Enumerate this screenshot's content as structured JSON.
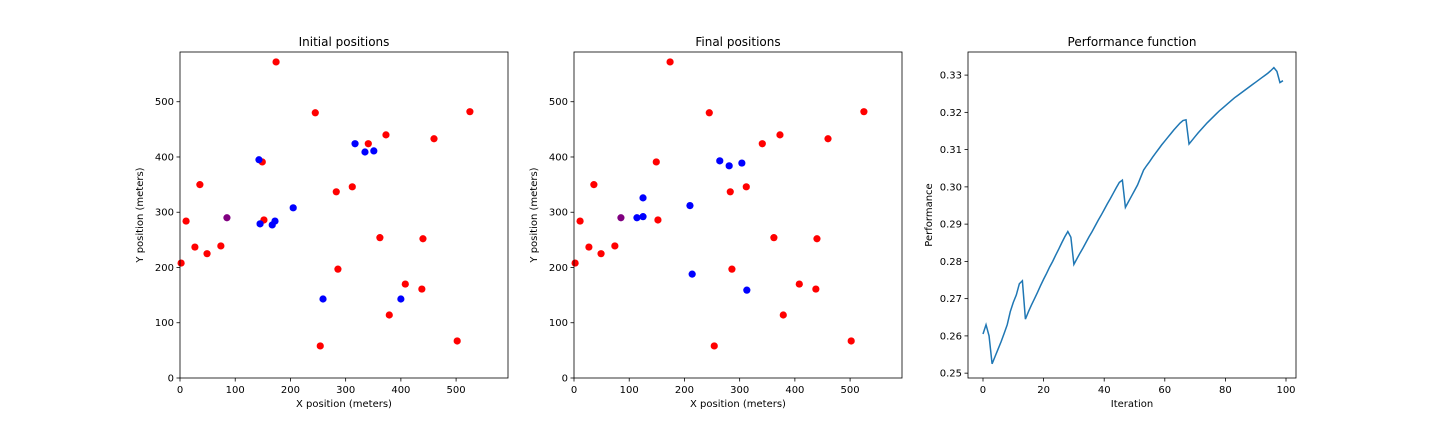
{
  "chart_data": [
    {
      "type": "scatter",
      "title": "Initial positions",
      "x_label": "X position (meters)",
      "y_label": "Y position (meters)",
      "xlim": [
        0,
        594
      ],
      "ylim": [
        0,
        590
      ],
      "xticks": [
        0,
        100,
        200,
        300,
        400,
        500
      ],
      "yticks": [
        0,
        100,
        200,
        300,
        400,
        500
      ],
      "series": [
        {
          "color": "red",
          "x": [
            174,
            245,
            525,
            373,
            341,
            460,
            149,
            36,
            312,
            283,
            11,
            152,
            2,
            27,
            49,
            74,
            362,
            440,
            286,
            408,
            438,
            379,
            254,
            502
          ],
          "y": [
            572,
            480,
            482,
            440,
            424,
            433,
            391,
            350,
            346,
            337,
            284,
            286,
            208,
            237,
            225,
            239,
            254,
            252,
            197,
            170,
            161,
            114,
            58,
            67
          ]
        },
        {
          "color": "blue",
          "x": [
            317,
            335,
            351,
            143,
            205,
            172,
            167,
            145,
            259,
            400
          ],
          "y": [
            424,
            409,
            411,
            395,
            308,
            284,
            277,
            279,
            143,
            143
          ]
        },
        {
          "color": "purple",
          "x": [
            85
          ],
          "y": [
            290
          ]
        }
      ]
    },
    {
      "type": "scatter",
      "title": "Final positions",
      "x_label": "X position (meters)",
      "y_label": "Y position (meters)",
      "xlim": [
        0,
        594
      ],
      "ylim": [
        0,
        590
      ],
      "xticks": [
        0,
        100,
        200,
        300,
        400,
        500
      ],
      "yticks": [
        0,
        100,
        200,
        300,
        400,
        500
      ],
      "series": [
        {
          "color": "red",
          "x": [
            174,
            245,
            525,
            373,
            341,
            460,
            149,
            36,
            312,
            283,
            11,
            152,
            2,
            27,
            49,
            74,
            362,
            440,
            286,
            408,
            438,
            379,
            254,
            502
          ],
          "y": [
            572,
            480,
            482,
            440,
            424,
            433,
            391,
            350,
            346,
            337,
            284,
            286,
            208,
            237,
            225,
            239,
            254,
            252,
            197,
            170,
            161,
            114,
            58,
            67
          ]
        },
        {
          "color": "blue",
          "x": [
            264,
            281,
            304,
            125,
            114,
            125,
            210,
            214,
            313
          ],
          "y": [
            393,
            384,
            389,
            326,
            290,
            292,
            312,
            188,
            159
          ]
        },
        {
          "color": "purple",
          "x": [
            85
          ],
          "y": [
            290
          ]
        }
      ]
    },
    {
      "type": "line",
      "title": "Performance function",
      "x_label": "Iteration",
      "y_label": "Performance",
      "xlim": [
        -4.95,
        103.3
      ],
      "ylim": [
        0.2487,
        0.3362
      ],
      "xticks": [
        0,
        20,
        40,
        60,
        80,
        100
      ],
      "yticks": [
        0.25,
        0.26,
        0.27,
        0.28,
        0.29,
        {
          "value": 0.3,
          "label": "0.30"
        },
        0.31,
        0.32,
        0.33
      ],
      "series": [
        {
          "color": "#1f77b4",
          "x": [
            0,
            1,
            2,
            3,
            4,
            5,
            6,
            7,
            8,
            9,
            10,
            11,
            12,
            13,
            14,
            15,
            16,
            17,
            18,
            19,
            20,
            21,
            22,
            23,
            24,
            25,
            26,
            27,
            28,
            29,
            30,
            31,
            32,
            33,
            34,
            35,
            36,
            37,
            38,
            39,
            40,
            41,
            42,
            43,
            44,
            45,
            46,
            47,
            48,
            49,
            50,
            51,
            52,
            53,
            54,
            55,
            56,
            57,
            58,
            59,
            60,
            61,
            62,
            63,
            64,
            65,
            66,
            67,
            68,
            69,
            70,
            71,
            72,
            73,
            74,
            75,
            76,
            77,
            78,
            79,
            80,
            81,
            82,
            83,
            84,
            85,
            86,
            87,
            88,
            89,
            90,
            91,
            92,
            93,
            94,
            95,
            96,
            97,
            98,
            99
          ],
          "values": [
            0.2605,
            0.263,
            0.26,
            0.2525,
            0.2545,
            0.2565,
            0.2585,
            0.2607,
            0.263,
            0.2665,
            0.269,
            0.271,
            0.274,
            0.2748,
            0.2645,
            0.2665,
            0.2683,
            0.27,
            0.2717,
            0.2735,
            0.2752,
            0.2768,
            0.2785,
            0.28,
            0.2817,
            0.2833,
            0.285,
            0.2866,
            0.288,
            0.2865,
            0.2792,
            0.2807,
            0.2822,
            0.2836,
            0.2851,
            0.2866,
            0.288,
            0.2895,
            0.291,
            0.2924,
            0.2939,
            0.2954,
            0.2968,
            0.2983,
            0.2998,
            0.3012,
            0.3018,
            0.2945,
            0.296,
            0.2975,
            0.299,
            0.3005,
            0.3025,
            0.3045,
            0.3057,
            0.3068,
            0.308,
            0.3091,
            0.3102,
            0.3113,
            0.3123,
            0.3133,
            0.3143,
            0.3153,
            0.3162,
            0.3171,
            0.3178,
            0.318,
            0.3115,
            0.3125,
            0.3135,
            0.3145,
            0.3154,
            0.3163,
            0.3172,
            0.318,
            0.3188,
            0.3196,
            0.3204,
            0.3211,
            0.3218,
            0.3225,
            0.3232,
            0.3239,
            0.3245,
            0.3251,
            0.3257,
            0.3263,
            0.3269,
            0.3275,
            0.3281,
            0.3287,
            0.3293,
            0.3299,
            0.3305,
            0.3312,
            0.332,
            0.331,
            0.328,
            0.3285
          ]
        }
      ]
    }
  ]
}
